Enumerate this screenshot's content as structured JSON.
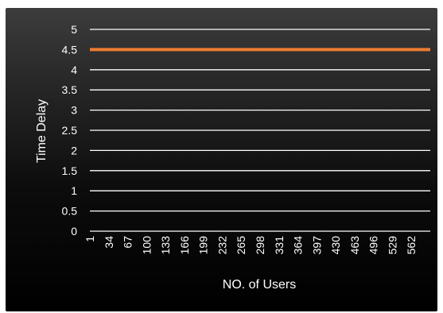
{
  "chart_data": {
    "type": "line",
    "title": "",
    "xlabel": "NO. of Users",
    "ylabel": "Time Delay",
    "ylim": [
      0,
      5
    ],
    "y_ticks": [
      "0",
      "0.5",
      "1",
      "1.5",
      "2",
      "2.5",
      "3",
      "3.5",
      "4",
      "4.5",
      "5"
    ],
    "x_tick_labels": [
      "1",
      "34",
      "67",
      "100",
      "133",
      "166",
      "199",
      "232",
      "265",
      "298",
      "331",
      "364",
      "397",
      "430",
      "463",
      "496",
      "529",
      "562"
    ],
    "x_range": [
      1,
      595
    ],
    "grid": true,
    "legend": "none",
    "series": [
      {
        "color": "#ed7d31",
        "x": [
          1,
          595
        ],
        "values": [
          4.5,
          4.5
        ]
      }
    ]
  },
  "colors": {
    "line": "#ed7d31",
    "grid": "#ffffff",
    "text": "#ffffff"
  }
}
